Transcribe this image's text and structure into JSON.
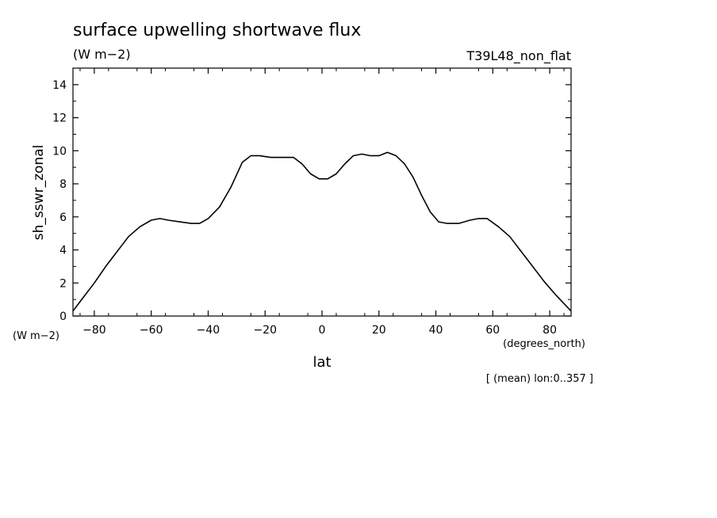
{
  "chart_data": {
    "type": "line",
    "title": "surface upwelling shortwave flux",
    "units_label": "(W m−2)",
    "run_label": "T39L48_non_flat",
    "ylabel": "sh_sswr_zonal",
    "y_units": "(W m−2)",
    "xlabel": "lat",
    "x_units": "(degrees_north)",
    "footnote": "[ (mean) lon:0..357 ]",
    "xlim": [
      -87.5,
      87.5
    ],
    "ylim": [
      0,
      15
    ],
    "x_ticks": [
      -80,
      -60,
      -40,
      -20,
      0,
      20,
      40,
      60,
      80
    ],
    "x_tick_labels": [
      "−80",
      "−60",
      "−40",
      "−20",
      "0",
      "20",
      "40",
      "60",
      "80"
    ],
    "y_ticks": [
      0,
      2,
      4,
      6,
      8,
      10,
      12,
      14
    ],
    "y_tick_labels": [
      "0",
      "2",
      "4",
      "6",
      "8",
      "10",
      "12",
      "14"
    ],
    "grid": false,
    "series": [
      {
        "x": [
          -87.5,
          -84,
          -80,
          -76,
          -72,
          -68,
          -64,
          -60,
          -57,
          -54,
          -50,
          -46,
          -43,
          -40,
          -36,
          -32,
          -28,
          -25,
          -22,
          -18,
          -14,
          -10,
          -7,
          -4,
          -1,
          2,
          5,
          8,
          11,
          14,
          17,
          20,
          23,
          26,
          29,
          32,
          35,
          38,
          41,
          44,
          48,
          52,
          55,
          58,
          62,
          66,
          70,
          74,
          78,
          82,
          87.5
        ],
        "y": [
          0.3,
          1.1,
          2.0,
          3.0,
          3.9,
          4.8,
          5.4,
          5.8,
          5.9,
          5.8,
          5.7,
          5.6,
          5.6,
          5.9,
          6.6,
          7.8,
          9.3,
          9.7,
          9.7,
          9.6,
          9.6,
          9.6,
          9.2,
          8.6,
          8.3,
          8.3,
          8.6,
          9.2,
          9.7,
          9.8,
          9.7,
          9.7,
          9.9,
          9.7,
          9.2,
          8.4,
          7.3,
          6.3,
          5.7,
          5.6,
          5.6,
          5.8,
          5.9,
          5.9,
          5.4,
          4.8,
          3.9,
          3.0,
          2.1,
          1.3,
          0.3
        ]
      }
    ]
  }
}
